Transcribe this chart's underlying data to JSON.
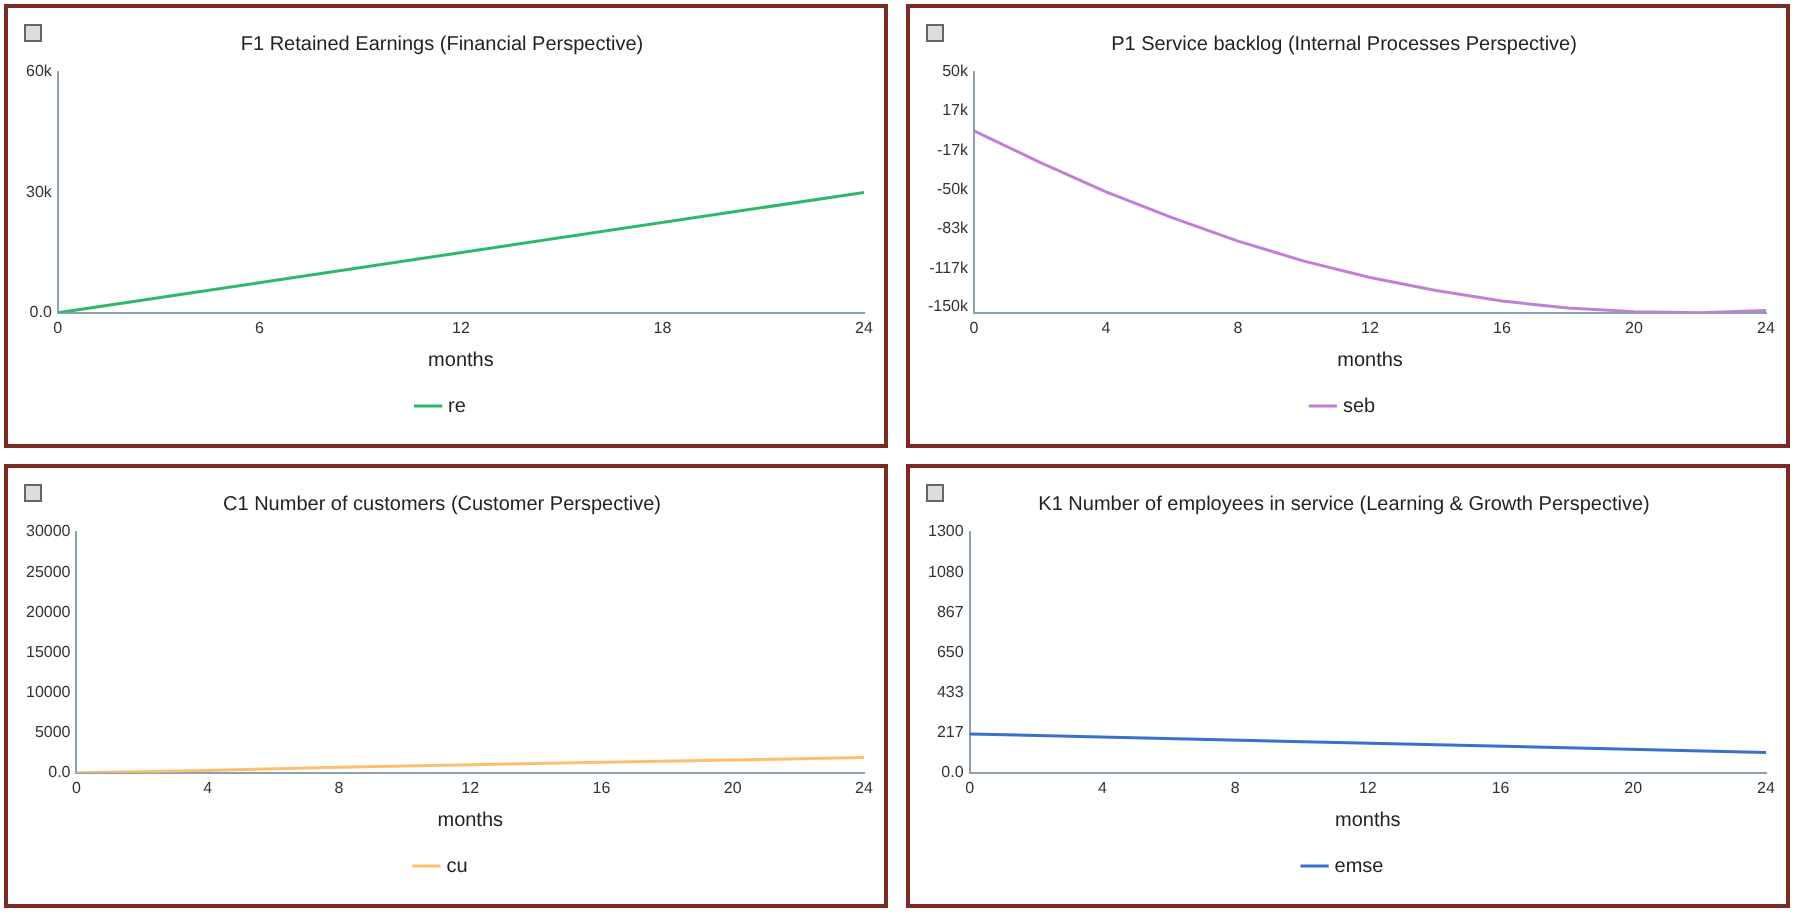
{
  "chart_data": [
    {
      "type": "line",
      "title": "F1 Retained Earnings (Financial Perspective)",
      "xlabel": "months",
      "x": [
        0,
        24
      ],
      "xlim": [
        0,
        24
      ],
      "xticks": [
        0,
        6,
        12,
        18,
        24
      ],
      "ylim": [
        0,
        60000
      ],
      "yticks": [
        {
          "value": 0,
          "label": "0.0"
        },
        {
          "value": 30000,
          "label": "30k"
        },
        {
          "value": 60000,
          "label": "60k"
        }
      ],
      "grid": false,
      "legend": "bottom",
      "marker": "none",
      "line_style": "solid",
      "series": [
        {
          "name": "re",
          "color": "#2fb86a",
          "values": [
            0,
            30000
          ]
        }
      ]
    },
    {
      "type": "line",
      "title": "P1 Service backlog (Internal Processes Perspective)",
      "xlabel": "months",
      "x": [
        0,
        2,
        4,
        6,
        8,
        10,
        12,
        14,
        16,
        18,
        20,
        22,
        24
      ],
      "xlim": [
        0,
        24
      ],
      "xticks": [
        0,
        4,
        8,
        12,
        16,
        20,
        24
      ],
      "ylim": [
        -155000,
        50000
      ],
      "yticks": [
        {
          "value": 50000,
          "label": "50k"
        },
        {
          "value": 17000,
          "label": "17k"
        },
        {
          "value": -17000,
          "label": "-17k"
        },
        {
          "value": -50000,
          "label": "-50k"
        },
        {
          "value": -83000,
          "label": "-83k"
        },
        {
          "value": -117000,
          "label": "-117k"
        },
        {
          "value": -150000,
          "label": "-150k"
        }
      ],
      "grid": false,
      "legend": "bottom",
      "marker": "none",
      "line_style": "solid",
      "series": [
        {
          "name": "seb",
          "color": "#c27fd6",
          "values": [
            0,
            -27000,
            -52000,
            -74000,
            -94000,
            -111000,
            -125000,
            -136000,
            -145000,
            -151000,
            -154000,
            -155000,
            -153000
          ]
        }
      ]
    },
    {
      "type": "line",
      "title": "C1 Number of customers (Customer Perspective)",
      "xlabel": "months",
      "x": [
        0,
        4,
        8,
        12,
        16,
        20,
        24
      ],
      "xlim": [
        0,
        24
      ],
      "xticks": [
        0,
        4,
        8,
        12,
        16,
        20,
        24
      ],
      "ylim": [
        0,
        30000
      ],
      "yticks": [
        {
          "value": 0,
          "label": "0.0"
        },
        5000,
        10000,
        15000,
        20000,
        25000,
        30000
      ],
      "grid": false,
      "legend": "bottom",
      "marker": "none",
      "line_style": "solid",
      "series": [
        {
          "name": "cu",
          "color": "#fdbf6f",
          "values": [
            0,
            300,
            700,
            1000,
            1300,
            1600,
            1900
          ]
        }
      ]
    },
    {
      "type": "line",
      "title": "K1 Number of employees in service (Learning & Growth Perspective)",
      "xlabel": "months",
      "x": [
        0,
        24
      ],
      "xlim": [
        0,
        24
      ],
      "xticks": [
        0,
        4,
        8,
        12,
        16,
        20,
        24
      ],
      "ylim": [
        0,
        1300
      ],
      "yticks": [
        {
          "value": 0,
          "label": "0.0"
        },
        217,
        433,
        650,
        867,
        1080,
        1300
      ],
      "grid": false,
      "legend": "bottom",
      "marker": "none",
      "line_style": "solid",
      "series": [
        {
          "name": "emse",
          "color": "#3a6fd0",
          "values": [
            210,
            110
          ]
        }
      ]
    }
  ]
}
